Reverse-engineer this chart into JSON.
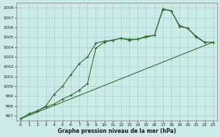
{
  "xlabel": "Graphe pression niveau de la mer (hPa)",
  "ylabel": "",
  "bg_color": "#cceae7",
  "grid_color": "#aad4d0",
  "line_color": "#2d6b2d",
  "marker": "+",
  "xlim": [
    -0.5,
    23.5
  ],
  "ylim": [
    996.5,
    1008.5
  ],
  "yticks": [
    997,
    998,
    999,
    1000,
    1001,
    1002,
    1003,
    1004,
    1005,
    1006,
    1007,
    1008
  ],
  "xticks": [
    0,
    1,
    2,
    3,
    4,
    5,
    6,
    7,
    8,
    9,
    10,
    11,
    12,
    13,
    14,
    15,
    16,
    17,
    18,
    19,
    20,
    21,
    22,
    23
  ],
  "line1_x": [
    0,
    1,
    2,
    3,
    4,
    5,
    6,
    7,
    8,
    9,
    10,
    11,
    12,
    13,
    14,
    15,
    16,
    17,
    18,
    19,
    20,
    21,
    22,
    23
  ],
  "line1_y": [
    996.7,
    997.2,
    997.5,
    998.0,
    999.2,
    1000.0,
    1001.2,
    1002.3,
    1003.0,
    1004.4,
    1004.6,
    1004.7,
    1004.9,
    1004.8,
    1004.8,
    1005.1,
    1005.2,
    1007.8,
    1007.7,
    1006.2,
    1005.9,
    1005.1,
    1004.5,
    1004.5
  ],
  "line2_x": [
    0,
    1,
    2,
    3,
    4,
    5,
    6,
    7,
    8,
    9,
    10,
    11,
    12,
    13,
    14,
    15,
    16,
    17,
    18,
    19,
    20,
    21,
    22,
    23
  ],
  "line2_y": [
    996.7,
    997.2,
    997.5,
    997.9,
    998.2,
    998.7,
    999.1,
    999.6,
    1000.3,
    1003.9,
    1004.5,
    1004.7,
    1004.9,
    1004.7,
    1004.8,
    1005.0,
    1005.2,
    1007.9,
    1007.7,
    1006.1,
    1005.9,
    1005.0,
    1004.5,
    1004.5
  ],
  "line3_x": [
    0,
    23
  ],
  "line3_y": [
    996.7,
    1004.5
  ]
}
